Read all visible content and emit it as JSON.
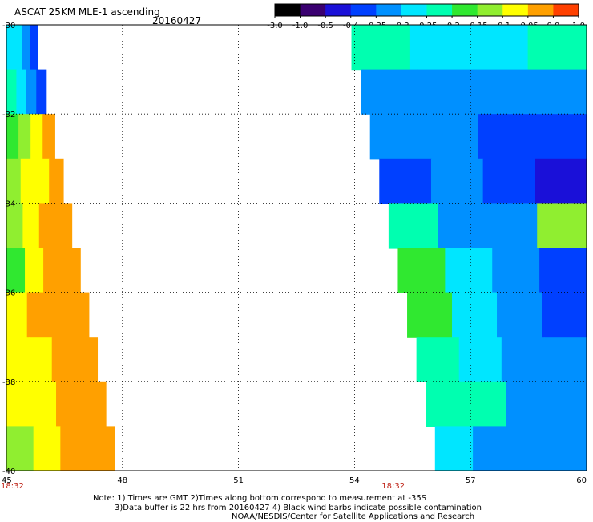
{
  "header": {
    "title": "ASCAT 25KM MLE-1 ascending",
    "date": "20160427"
  },
  "notes": [
    "Note: 1) Times are GMT 2)Times along bottom correspond to measurement at -35S",
    "3)Data buffer is 22 hrs from 20160427 4) Black wind barbs indicate possible contamination",
    "NOAA/NESDIS/Center for Satellite Applications and Research"
  ],
  "chart_data": {
    "type": "heatmap",
    "title": "ASCAT 25KM MLE-1 ascending",
    "xlabel": "",
    "ylabel": "",
    "xlim": [
      45,
      60
    ],
    "ylim": [
      -40,
      -30
    ],
    "x_ticks": [
      "45",
      "48",
      "51",
      "54",
      "57",
      "60"
    ],
    "y_ticks": [
      "-30",
      "-32",
      "-34",
      "-36",
      "-38",
      "-40"
    ],
    "grid": true,
    "time_labels": [
      {
        "lon": 45.0,
        "text": "18:32"
      },
      {
        "lon": 55.0,
        "text": "18:32"
      }
    ],
    "colorbar": {
      "labels": [
        "-3.0",
        "-1.0",
        "-0.5",
        "-0.4",
        "-0.35",
        "-0.3",
        "-0.25",
        "-0.2",
        "-0.15",
        "-0.1",
        "-0.05",
        "0.0",
        "1.0"
      ],
      "colors": [
        "#000000",
        "#3a0070",
        "#1a10d8",
        "#0040ff",
        "#0090ff",
        "#00e6ff",
        "#00ffb0",
        "#30e830",
        "#90ee30",
        "#ffff00",
        "#ffa000",
        "#ff4000"
      ]
    },
    "swaths": [
      {
        "name": "west",
        "lat_top": -30,
        "lat_bottom": -40,
        "lon_left": 45.0,
        "edge_top": 45.7,
        "edge_bottom": 47.9,
        "levels": [
          [
            -0.3,
            -0.3,
            -0.35,
            -0.4
          ],
          [
            -0.25,
            -0.3,
            -0.35,
            -0.4
          ],
          [
            -0.2,
            -0.15,
            -0.1,
            -0.05
          ],
          [
            -0.15,
            -0.1,
            -0.1,
            -0.05
          ],
          [
            -0.15,
            -0.1,
            -0.05,
            -0.05
          ],
          [
            -0.2,
            -0.1,
            -0.05,
            -0.05
          ],
          [
            -0.1,
            -0.05,
            -0.05,
            -0.05
          ],
          [
            -0.1,
            -0.1,
            -0.05,
            -0.05
          ],
          [
            -0.1,
            -0.1,
            -0.05,
            -0.05
          ],
          [
            -0.15,
            -0.1,
            -0.05,
            -0.05
          ]
        ]
      },
      {
        "name": "east",
        "lat_top": -30,
        "lat_bottom": -40,
        "lon_right": 60.0,
        "edge_top": 53.8,
        "edge_bottom": 56.2,
        "levels": [
          [
            -0.25,
            -0.3,
            -0.3,
            -0.25
          ],
          [
            -0.35,
            -0.35,
            -0.35,
            -0.35
          ],
          [
            -0.35,
            -0.35,
            -0.4,
            -0.4
          ],
          [
            -0.4,
            -0.35,
            -0.4,
            -0.5
          ],
          [
            -0.25,
            -0.35,
            -0.35,
            -0.15
          ],
          [
            -0.2,
            -0.3,
            -0.35,
            -0.4
          ],
          [
            -0.2,
            -0.3,
            -0.35,
            -0.4
          ],
          [
            -0.25,
            -0.3,
            -0.35,
            -0.35
          ],
          [
            -0.25,
            -0.25,
            -0.35,
            -0.35
          ],
          [
            -0.3,
            -0.35,
            -0.35,
            -0.35
          ]
        ]
      }
    ]
  }
}
